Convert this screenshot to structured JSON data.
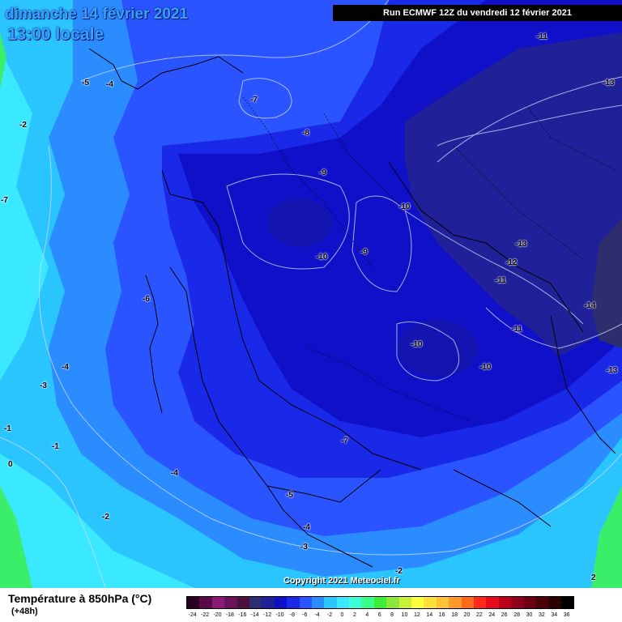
{
  "header": {
    "date_line": "dimanche 14 février 2021",
    "time_line": "13:00 locale",
    "run_line": "Run ECMWF 12Z du vendredi 12 février 2021"
  },
  "copyright": "Copyright 2021 Meteociel.fr",
  "legend": {
    "title": "Température à 850hPa (°C)",
    "subtitle": "(+48h)",
    "scale": [
      {
        "label": "-24",
        "color": "#2a0020"
      },
      {
        "label": "-22",
        "color": "#5a0a4a"
      },
      {
        "label": "-20",
        "color": "#8a1a7a"
      },
      {
        "label": "-18",
        "color": "#6a1458"
      },
      {
        "label": "-16",
        "color": "#4a1040"
      },
      {
        "label": "-14",
        "color": "#2e2e6e"
      },
      {
        "label": "-12",
        "color": "#202098"
      },
      {
        "label": "-10",
        "color": "#1010c8"
      },
      {
        "label": "-8",
        "color": "#1a28e8"
      },
      {
        "label": "-6",
        "color": "#2a54ff"
      },
      {
        "label": "-4",
        "color": "#2a8cff"
      },
      {
        "label": "-2",
        "color": "#2ac4ff"
      },
      {
        "label": "0",
        "color": "#3ae8ff"
      },
      {
        "label": "2",
        "color": "#3affd8"
      },
      {
        "label": "4",
        "color": "#3aff8a"
      },
      {
        "label": "6",
        "color": "#3aee3a"
      },
      {
        "label": "8",
        "color": "#8ae83a"
      },
      {
        "label": "10",
        "color": "#c8f03a"
      },
      {
        "label": "12",
        "color": "#ffff3a"
      },
      {
        "label": "14",
        "color": "#ffe03a"
      },
      {
        "label": "16",
        "color": "#ffc03a"
      },
      {
        "label": "18",
        "color": "#ff9a2a"
      },
      {
        "label": "20",
        "color": "#ff6a1a"
      },
      {
        "label": "22",
        "color": "#ff2a1a"
      },
      {
        "label": "24",
        "color": "#e80a1a"
      },
      {
        "label": "26",
        "color": "#c0001a"
      },
      {
        "label": "28",
        "color": "#90001a"
      },
      {
        "label": "30",
        "color": "#6a0010"
      },
      {
        "label": "32",
        "color": "#4a0008"
      },
      {
        "label": "34",
        "color": "#2a0004"
      },
      {
        "label": "36",
        "color": "#000000"
      }
    ]
  },
  "isotherm_labels": [
    "-5",
    "-4",
    "-2",
    "-7",
    "-8",
    "-9",
    "-10",
    "-11",
    "-13",
    "-7",
    "-10",
    "-9",
    "-13",
    "-12",
    "-11",
    "-6",
    "-14",
    "-11",
    "-10",
    "-10",
    "-13",
    "-4",
    "-3",
    "-1",
    "-1",
    "0",
    "-7",
    "-4",
    "-5",
    "-2",
    "-4",
    "-3",
    "-2",
    "2"
  ]
}
